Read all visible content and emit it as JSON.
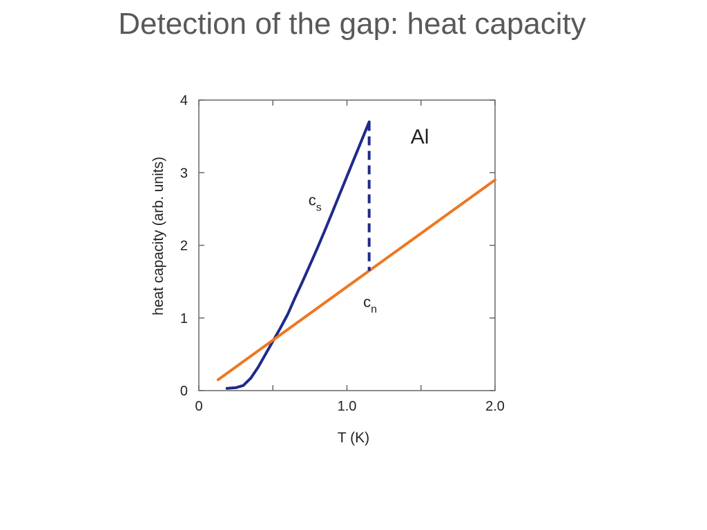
{
  "slide": {
    "title": "Detection of the gap: heat capacity"
  },
  "chart_data": {
    "type": "line",
    "title": "",
    "xlabel": "T (K)",
    "ylabel": "heat capacity (arb. units)",
    "xlim": [
      0,
      2.0
    ],
    "ylim": [
      0,
      4
    ],
    "x_ticks": [
      0,
      1.0,
      2.0
    ],
    "x_tick_labels": [
      "0",
      "1.0",
      "2.0"
    ],
    "y_ticks": [
      0,
      1,
      2,
      3,
      4
    ],
    "y_tick_labels": [
      "0",
      "1",
      "2",
      "3",
      "4"
    ],
    "grid": false,
    "label": "Al",
    "colors": {
      "cs": "#1f2a8a",
      "cn": "#ee7722"
    },
    "series": [
      {
        "name": "cs",
        "x": [
          0.19,
          0.25,
          0.3,
          0.35,
          0.4,
          0.45,
          0.5,
          0.55,
          0.6,
          0.65,
          0.7,
          0.75,
          0.8,
          0.85,
          0.9,
          0.95,
          1.0,
          1.05,
          1.1,
          1.15
        ],
        "y": [
          0.03,
          0.04,
          0.07,
          0.17,
          0.32,
          0.5,
          0.68,
          0.86,
          1.05,
          1.28,
          1.5,
          1.73,
          1.96,
          2.2,
          2.45,
          2.7,
          2.95,
          3.2,
          3.45,
          3.7
        ]
      },
      {
        "name": "cn",
        "x": [
          0.13,
          2.0
        ],
        "y": [
          0.15,
          2.9
        ]
      }
    ],
    "jump": {
      "x": 1.15,
      "y_from": 3.7,
      "y_to": 1.65
    },
    "annotations": [
      {
        "text": "Al",
        "x": 1.43,
        "y": 3.4
      },
      {
        "main": "c",
        "sub": "s",
        "x": 0.74,
        "y": 2.55
      },
      {
        "main": "c",
        "sub": "n",
        "x": 1.11,
        "y": 1.15
      }
    ]
  }
}
